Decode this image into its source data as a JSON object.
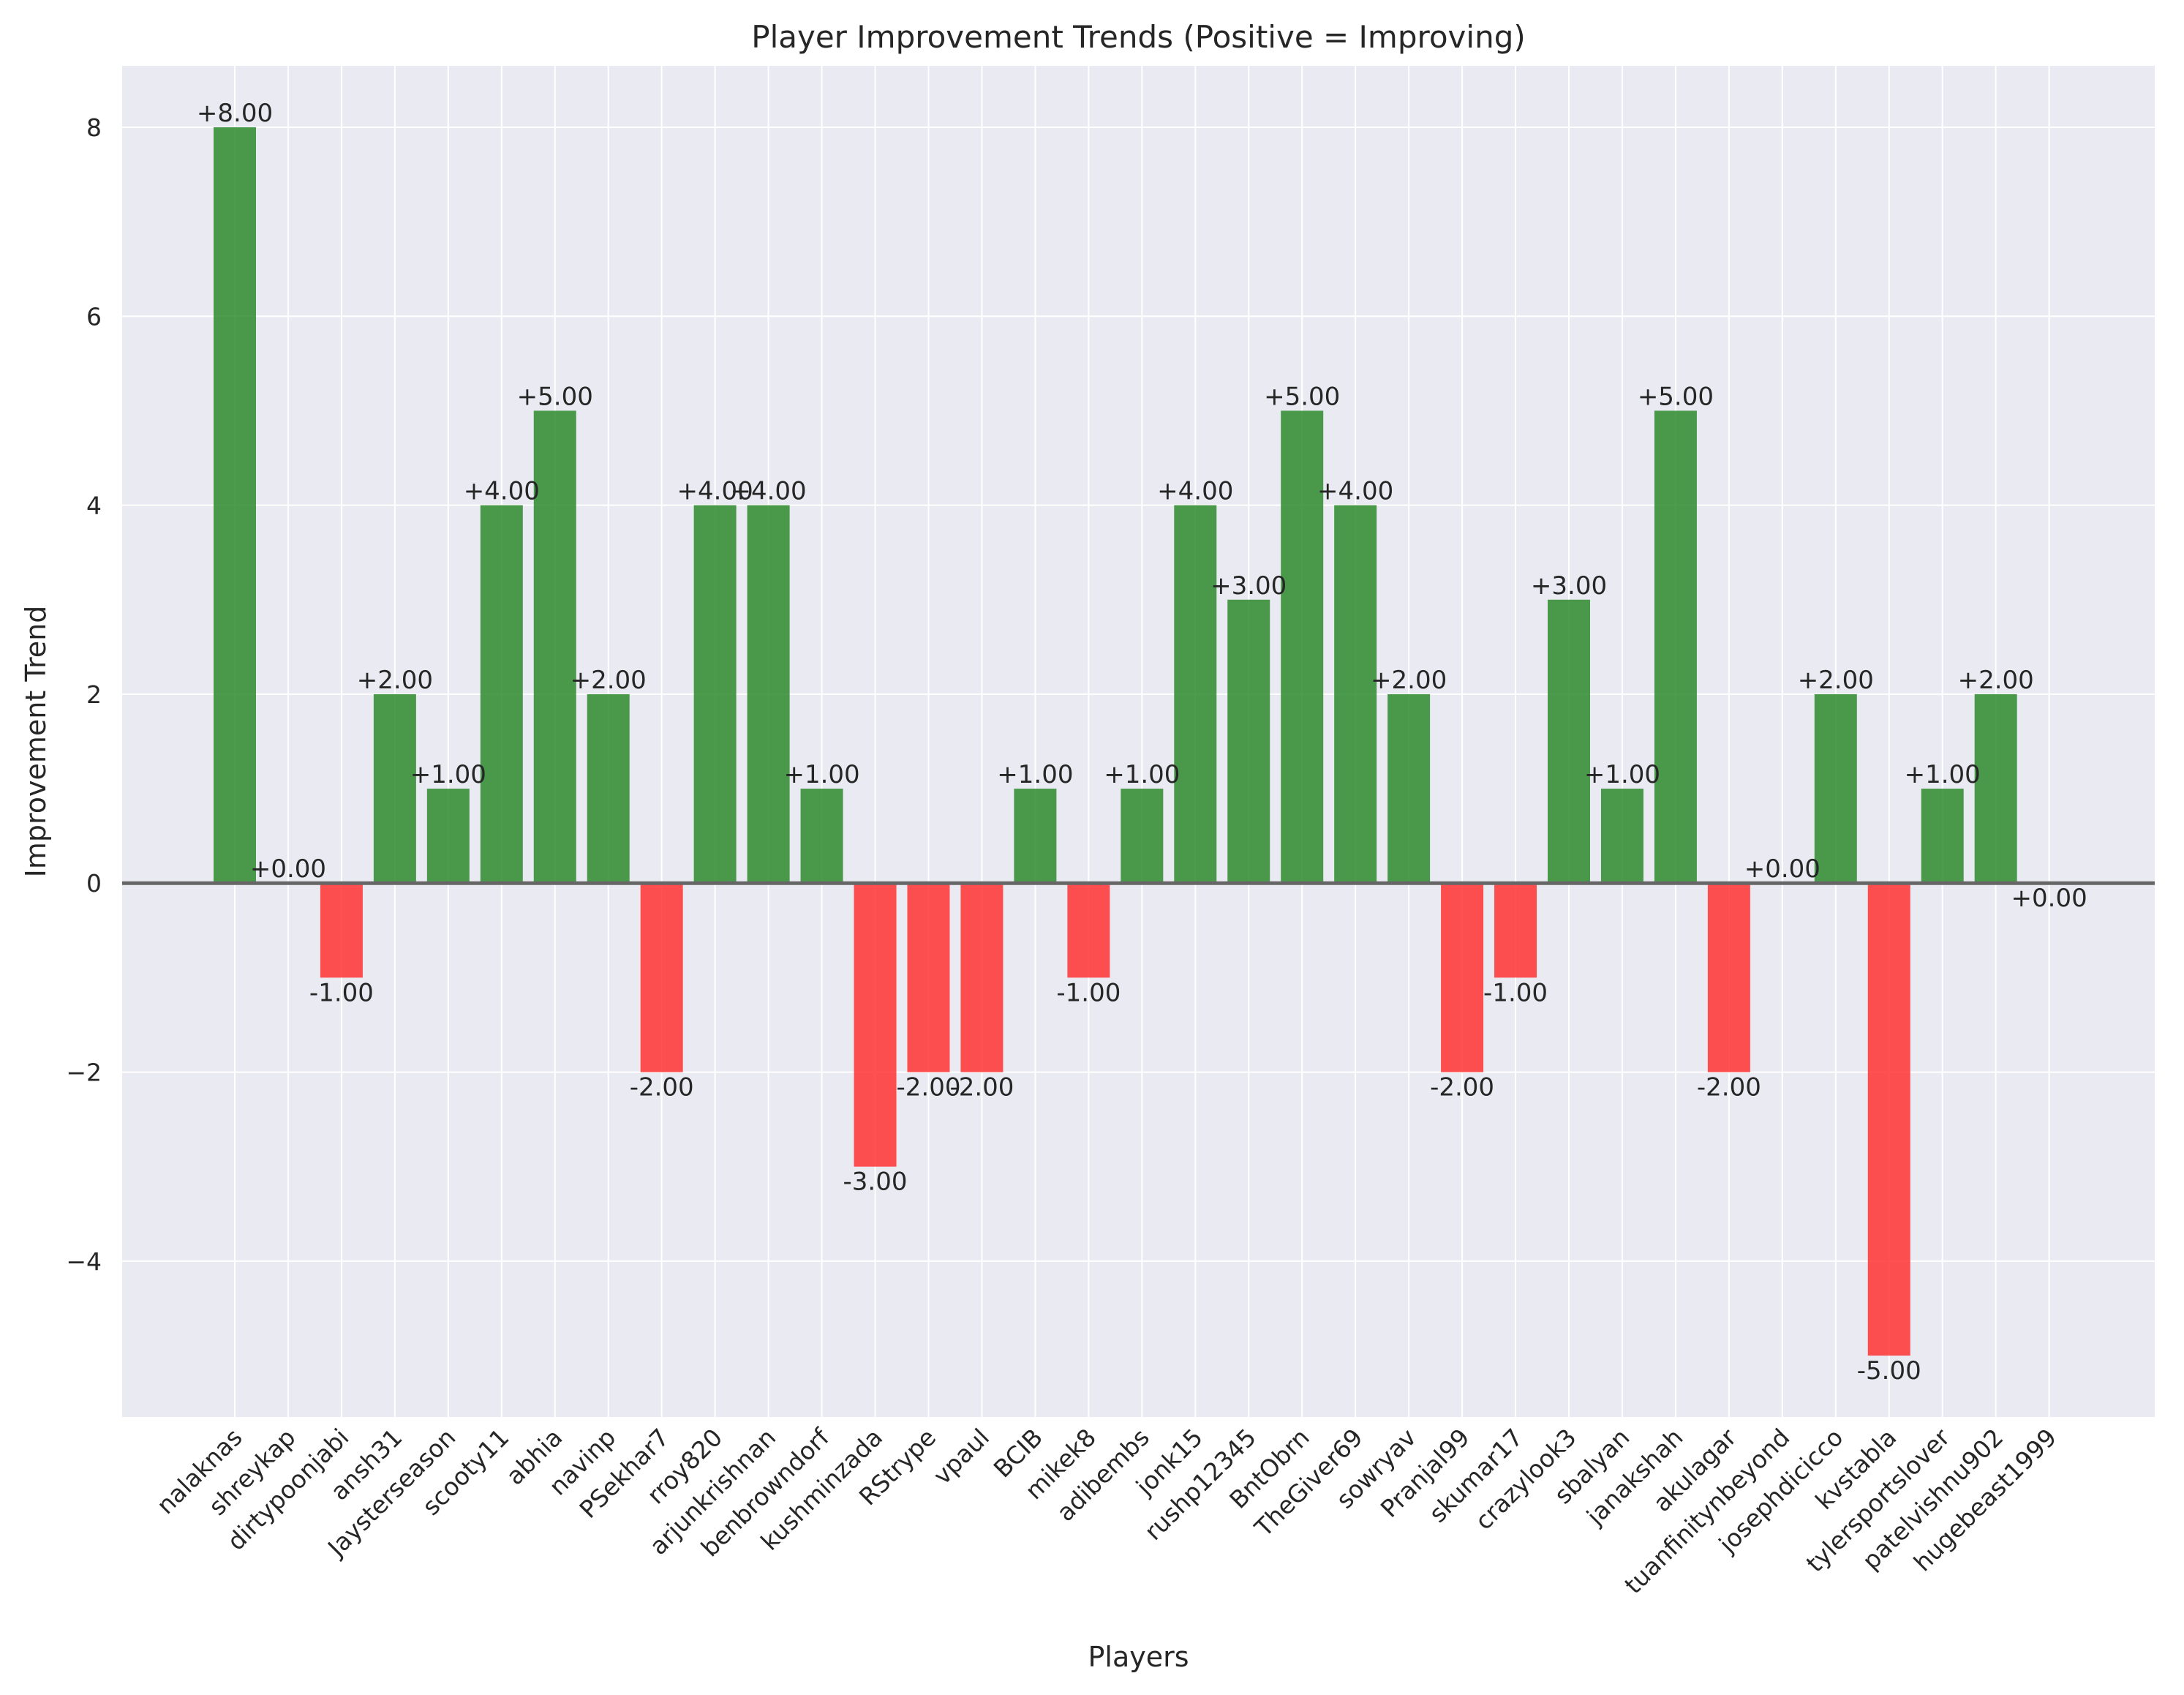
{
  "chart_data": {
    "type": "bar",
    "title": "Player Improvement Trends (Positive = Improving)",
    "xlabel": "Players",
    "ylabel": "Improvement Trend",
    "ylim": [
      -5.65,
      8.65
    ],
    "yticks": [
      -4,
      -2,
      0,
      2,
      4,
      6,
      8
    ],
    "ytick_labels": [
      "−4",
      "−2",
      "0",
      "2",
      "4",
      "6",
      "8"
    ],
    "grid": true,
    "categories": [
      "nalaknas",
      "shreykap",
      "dirtypoonjabi",
      "ansh31",
      "Jaysterseason",
      "scooty11",
      "abhia",
      "navinp",
      "PSekhar7",
      "rroy820",
      "arjunkrishnan",
      "benbrowndorf",
      "kushminzada",
      "RStrype",
      "vpaul",
      "BCIB",
      "mikek8",
      "adibembs",
      "jonk15",
      "rushp12345",
      "BntObrn",
      "TheGiver69",
      "sowryav",
      "Pranjal99",
      "skumar17",
      "crazylook3",
      "sbalyan",
      "janakshah",
      "akulagar",
      "tuanfinitynbeyond",
      "josephdicicco",
      "kvstabla",
      "tylersportslover",
      "patelvishnu902",
      "hugebeast1999"
    ],
    "values": [
      8,
      0,
      -1,
      2,
      1,
      4,
      5,
      2,
      -2,
      4,
      4,
      1,
      -3,
      -2,
      -2,
      1,
      -1,
      1,
      4,
      3,
      5,
      4,
      2,
      -2,
      -1,
      3,
      1,
      5,
      -2,
      0,
      2,
      -5,
      1,
      2,
      0
    ],
    "value_labels": [
      "+8.00",
      "+0.00",
      "-1.00",
      "+2.00",
      "+1.00",
      "+4.00",
      "+5.00",
      "+2.00",
      "-2.00",
      "+4.00",
      "+4.00",
      "+1.00",
      "-3.00",
      "-2.00",
      "-2.00",
      "+1.00",
      "-1.00",
      "+1.00",
      "+4.00",
      "+3.00",
      "+5.00",
      "+4.00",
      "+2.00",
      "-2.00",
      "-1.00",
      "+3.00",
      "+1.00",
      "+5.00",
      "-2.00",
      "+0.00",
      "+2.00",
      "-5.00",
      "+1.00",
      "+2.00",
      "+0.00"
    ],
    "colors": {
      "positive": "#2e8b2e",
      "negative": "#ff3333",
      "plot_background": "#eaeaf2",
      "zero_line": "#666666",
      "grid": "#ffffff"
    }
  }
}
